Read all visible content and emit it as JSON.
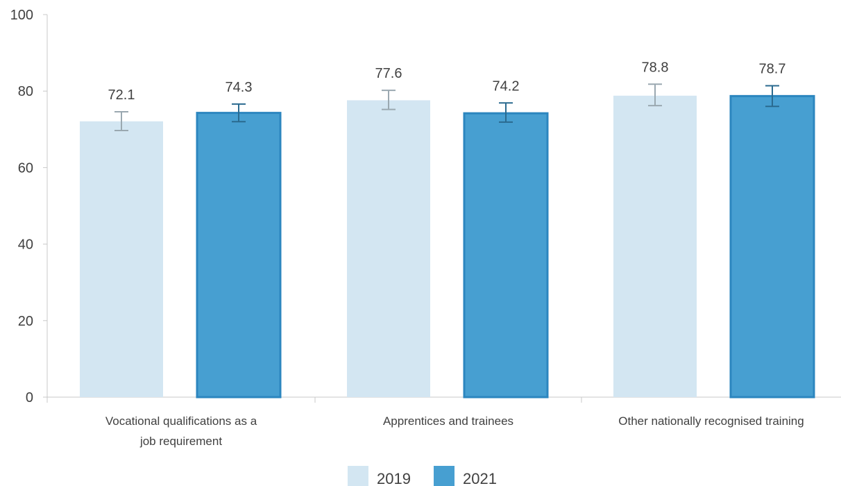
{
  "chart_data": {
    "type": "bar",
    "categories": [
      [
        "Vocational qualifications as a",
        "job requirement"
      ],
      [
        "Apprentices and trainees"
      ],
      [
        "Other nationally recognised training"
      ]
    ],
    "series": [
      {
        "name": "2019",
        "color": "#d3e6f2",
        "errorColor": "#9aa8b0",
        "values": [
          72.1,
          77.6,
          78.8
        ],
        "error_low": [
          69.7,
          75.2,
          76.2
        ],
        "error_high": [
          74.6,
          80.2,
          81.8
        ],
        "labels": [
          "72.1",
          "77.6",
          "78.8"
        ]
      },
      {
        "name": "2021",
        "color": "#479fd1",
        "stroke": "#2c86bf",
        "errorColor": "#2a6a8f",
        "values": [
          74.3,
          74.2,
          78.7
        ],
        "error_low": [
          72.0,
          71.9,
          76.0
        ],
        "error_high": [
          76.6,
          76.9,
          81.4
        ],
        "labels": [
          "74.3",
          "74.2",
          "78.7"
        ]
      }
    ],
    "yticks": [
      "0",
      "20",
      "40",
      "60",
      "80",
      "100"
    ],
    "ylim": [
      0,
      100
    ],
    "grid": false,
    "legend": "bottom-center",
    "axisColor": "#c8c8c8"
  }
}
